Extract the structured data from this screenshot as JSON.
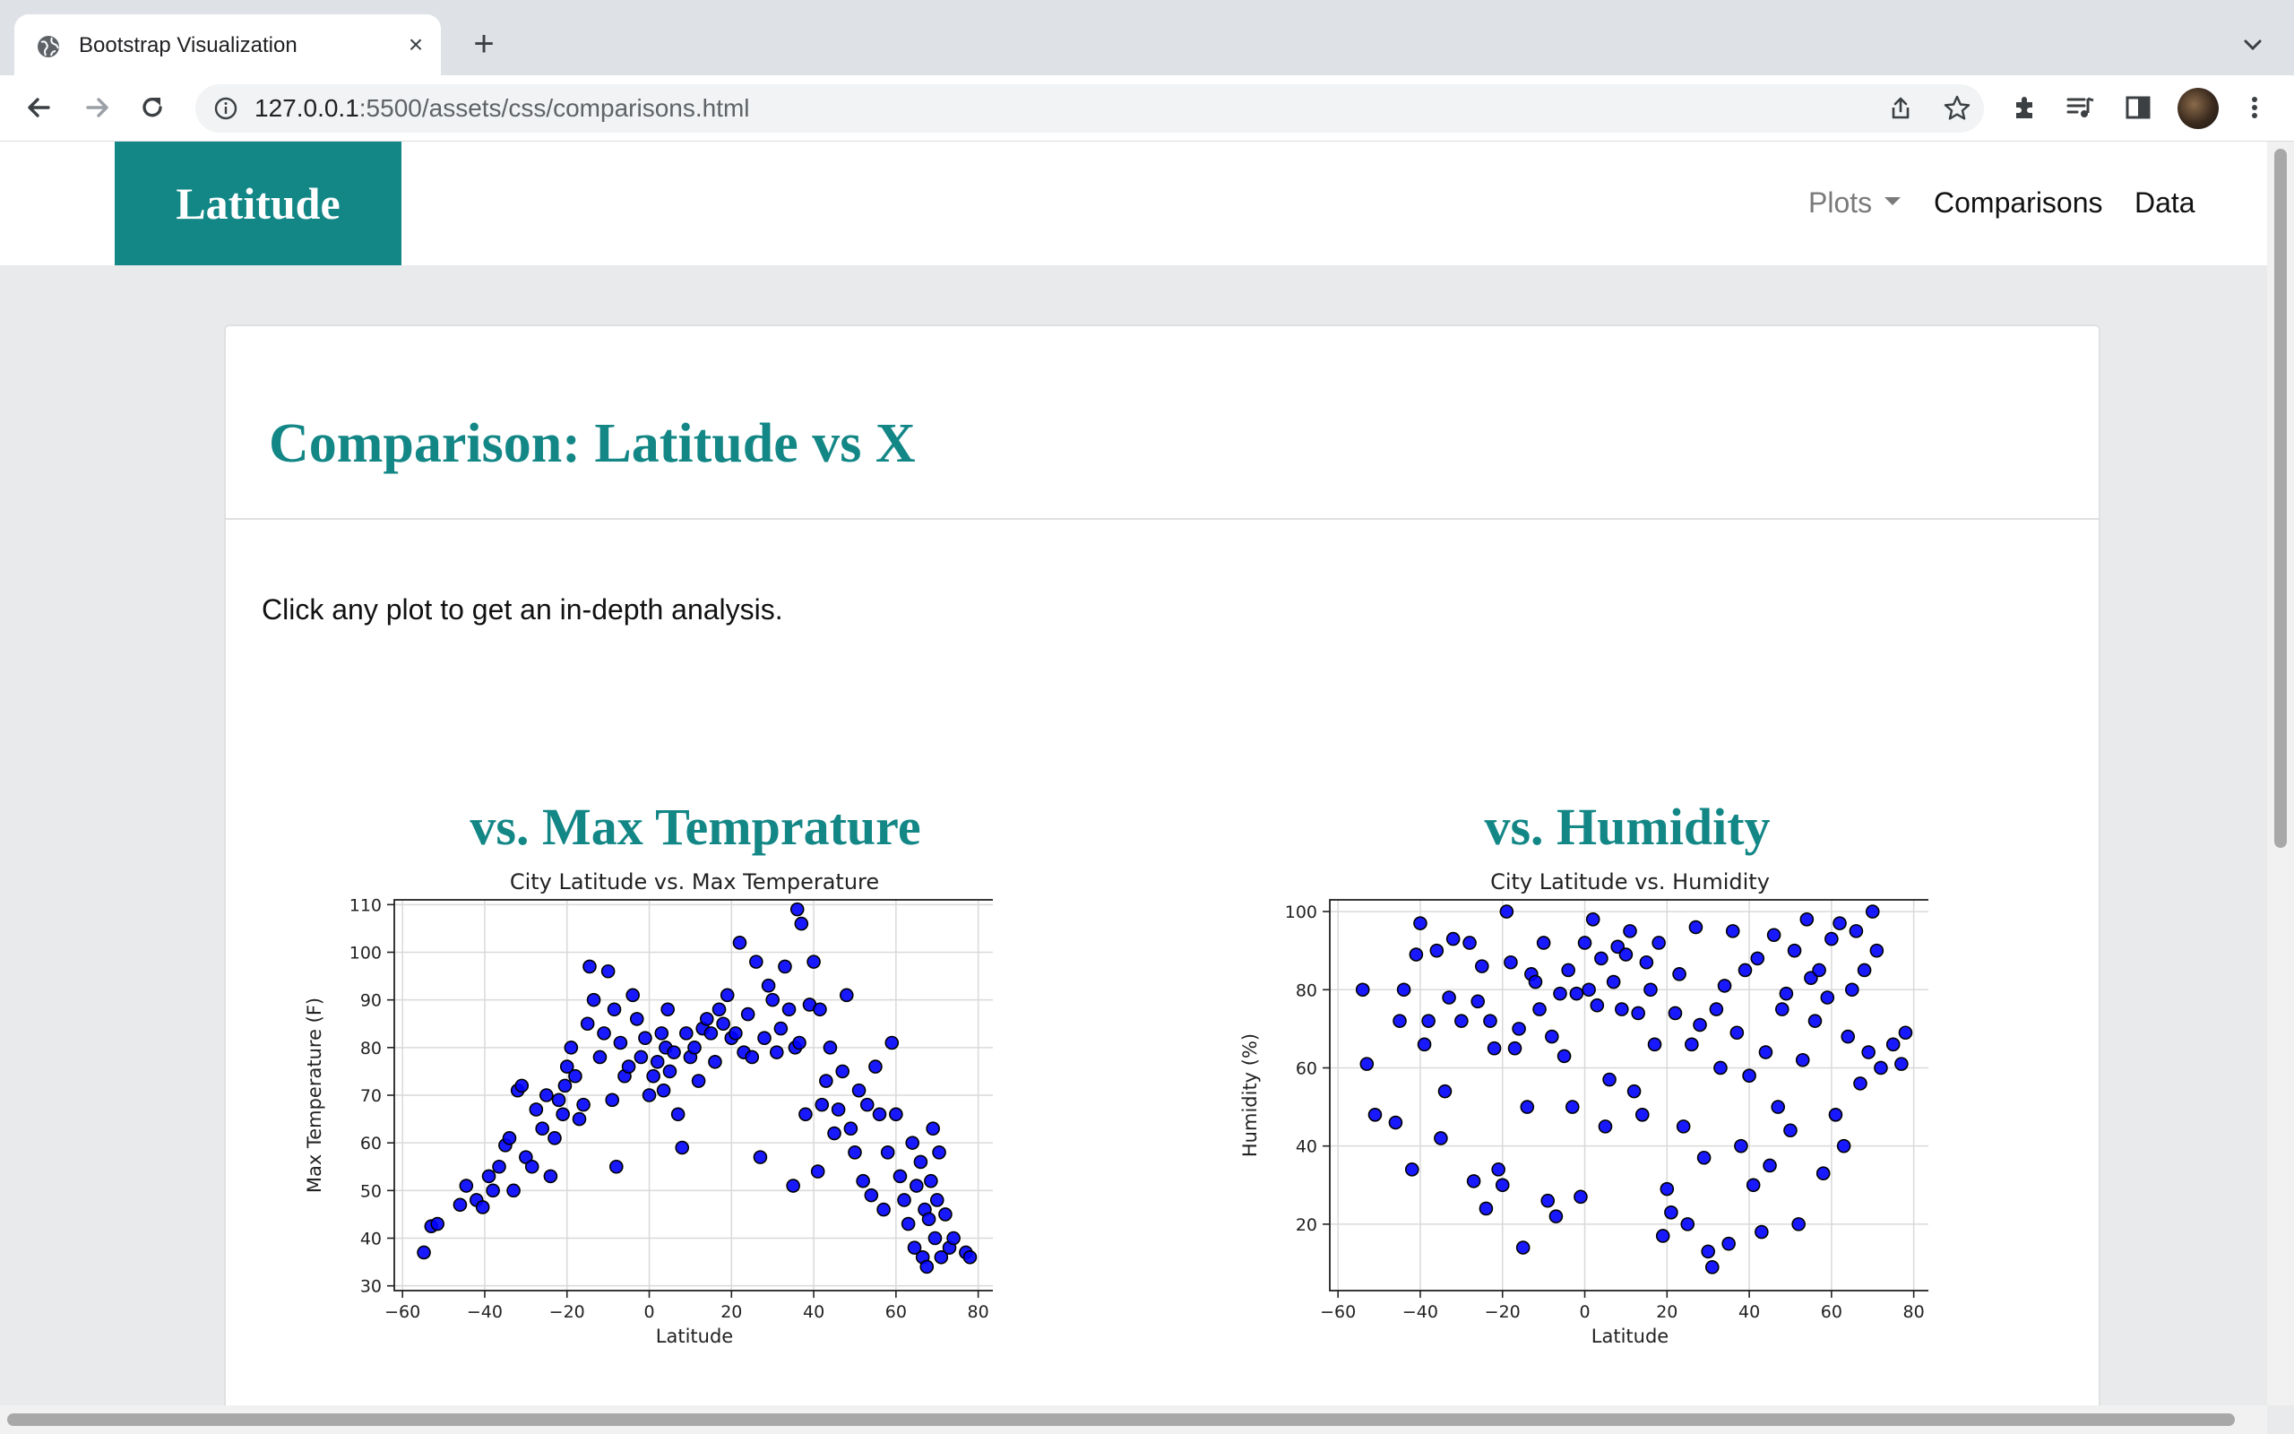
{
  "browser": {
    "tab_title": "Bootstrap Visualization",
    "url_host": "127.0.0.1",
    "url_rest": ":5500/assets/css/comparisons.html",
    "icons": [
      "globe-icon",
      "close-icon",
      "plus-icon",
      "chevron-down-icon",
      "back-icon",
      "forward-icon",
      "reload-icon",
      "info-icon",
      "share-icon",
      "star-icon",
      "extensions-icon",
      "media-icon",
      "side-panel-icon",
      "avatar",
      "menu-icon"
    ]
  },
  "nav": {
    "brand": "Latitude",
    "plots": "Plots",
    "comparisons": "Comparisons",
    "data": "Data"
  },
  "card": {
    "title": "Comparison: Latitude vs X",
    "intro": "Click any plot to get an in-depth analysis."
  },
  "plots": [
    {
      "heading": "vs. Max Temprature"
    },
    {
      "heading": "vs. Humidity"
    }
  ],
  "colors": {
    "accent": "#138686",
    "point_fill": "#0000ff",
    "point_edge": "#000000"
  },
  "chart_data": [
    {
      "type": "scatter",
      "title": "City Latitude vs. Max Temperature",
      "xlabel": "Latitude",
      "ylabel": "Max Temperature (F)",
      "xlim": [
        -62,
        84
      ],
      "ylim": [
        29,
        111
      ],
      "xticks": [
        -60,
        -40,
        -20,
        0,
        20,
        40,
        60,
        80
      ],
      "yticks": [
        30,
        40,
        50,
        60,
        70,
        80,
        90,
        100,
        110
      ],
      "grid": true,
      "points": [
        [
          -54.8,
          37
        ],
        [
          -53,
          42.5
        ],
        [
          -51.5,
          43
        ],
        [
          -46,
          47
        ],
        [
          -44.5,
          51
        ],
        [
          -42,
          48
        ],
        [
          -40.5,
          46.5
        ],
        [
          -39,
          53
        ],
        [
          -38,
          50
        ],
        [
          -36.5,
          55
        ],
        [
          -35,
          59.5
        ],
        [
          -34,
          61
        ],
        [
          -33,
          50
        ],
        [
          -32,
          71
        ],
        [
          -31,
          72
        ],
        [
          -30,
          57
        ],
        [
          -28.5,
          55
        ],
        [
          -27.5,
          67
        ],
        [
          -26,
          63
        ],
        [
          -25,
          70
        ],
        [
          -24,
          53
        ],
        [
          -23,
          61
        ],
        [
          -22,
          69
        ],
        [
          -21,
          66
        ],
        [
          -20.5,
          72
        ],
        [
          -20,
          76
        ],
        [
          -19,
          80
        ],
        [
          -18,
          74
        ],
        [
          -17,
          65
        ],
        [
          -16,
          68
        ],
        [
          -15,
          85
        ],
        [
          -14.5,
          97
        ],
        [
          -13.5,
          90
        ],
        [
          -12,
          78
        ],
        [
          -11,
          83
        ],
        [
          -10,
          96
        ],
        [
          -9,
          69
        ],
        [
          -8.5,
          88
        ],
        [
          -8,
          55
        ],
        [
          -7,
          81
        ],
        [
          -6,
          74
        ],
        [
          -5,
          76
        ],
        [
          -4,
          91
        ],
        [
          -3,
          86
        ],
        [
          -2,
          78
        ],
        [
          -1,
          82
        ],
        [
          0,
          70
        ],
        [
          1,
          74
        ],
        [
          2,
          77
        ],
        [
          3,
          83
        ],
        [
          3.5,
          71
        ],
        [
          4,
          80
        ],
        [
          4.5,
          88
        ],
        [
          5,
          75
        ],
        [
          6,
          79
        ],
        [
          7,
          66
        ],
        [
          8,
          59
        ],
        [
          9,
          83
        ],
        [
          10,
          78
        ],
        [
          11,
          80
        ],
        [
          12,
          73
        ],
        [
          13,
          84
        ],
        [
          14,
          86
        ],
        [
          15,
          83
        ],
        [
          16,
          77
        ],
        [
          17,
          88
        ],
        [
          18,
          85
        ],
        [
          19,
          91
        ],
        [
          20,
          82
        ],
        [
          21,
          83
        ],
        [
          22,
          102
        ],
        [
          23,
          79
        ],
        [
          24,
          87
        ],
        [
          25,
          78
        ],
        [
          26,
          98
        ],
        [
          27,
          57
        ],
        [
          28,
          82
        ],
        [
          29,
          93
        ],
        [
          30,
          90
        ],
        [
          31,
          79
        ],
        [
          32,
          84
        ],
        [
          33,
          97
        ],
        [
          34,
          88
        ],
        [
          35,
          51
        ],
        [
          35.5,
          80
        ],
        [
          36,
          109
        ],
        [
          36.5,
          81
        ],
        [
          37,
          106
        ],
        [
          38,
          66
        ],
        [
          39,
          89
        ],
        [
          40,
          98
        ],
        [
          41,
          54
        ],
        [
          41.5,
          88
        ],
        [
          42,
          68
        ],
        [
          43,
          73
        ],
        [
          44,
          80
        ],
        [
          45,
          62
        ],
        [
          46,
          67
        ],
        [
          47,
          75
        ],
        [
          48,
          91
        ],
        [
          49,
          63
        ],
        [
          50,
          58
        ],
        [
          51,
          71
        ],
        [
          52,
          52
        ],
        [
          53,
          68
        ],
        [
          54,
          49
        ],
        [
          55,
          76
        ],
        [
          56,
          66
        ],
        [
          57,
          46
        ],
        [
          58,
          58
        ],
        [
          59,
          81
        ],
        [
          60,
          66
        ],
        [
          61,
          53
        ],
        [
          62,
          48
        ],
        [
          63,
          43
        ],
        [
          64,
          60
        ],
        [
          64.5,
          38
        ],
        [
          65,
          51
        ],
        [
          66,
          56
        ],
        [
          66.5,
          36
        ],
        [
          67,
          46
        ],
        [
          67.5,
          34
        ],
        [
          68,
          44
        ],
        [
          68.5,
          52
        ],
        [
          69,
          63
        ],
        [
          69.5,
          40
        ],
        [
          70,
          48
        ],
        [
          70.5,
          58
        ],
        [
          71,
          36
        ],
        [
          72,
          45
        ],
        [
          73,
          38
        ],
        [
          74,
          40
        ],
        [
          77,
          37
        ],
        [
          78,
          36
        ]
      ]
    },
    {
      "type": "scatter",
      "title": "City Latitude vs. Humidity",
      "xlabel": "Latitude",
      "ylabel": "Humidity (%)",
      "xlim": [
        -62,
        84
      ],
      "ylim": [
        3,
        103
      ],
      "xticks": [
        -60,
        -40,
        -20,
        0,
        20,
        40,
        60,
        80
      ],
      "yticks": [
        20,
        40,
        60,
        80,
        100
      ],
      "grid": true,
      "points": [
        [
          -54,
          80
        ],
        [
          -53,
          61
        ],
        [
          -51,
          48
        ],
        [
          -46,
          46
        ],
        [
          -45,
          72
        ],
        [
          -44,
          80
        ],
        [
          -42,
          34
        ],
        [
          -41,
          89
        ],
        [
          -40,
          97
        ],
        [
          -39,
          66
        ],
        [
          -38,
          72
        ],
        [
          -36,
          90
        ],
        [
          -35,
          42
        ],
        [
          -34,
          54
        ],
        [
          -33,
          78
        ],
        [
          -32,
          93
        ],
        [
          -30,
          72
        ],
        [
          -28,
          92
        ],
        [
          -27,
          31
        ],
        [
          -26,
          77
        ],
        [
          -25,
          86
        ],
        [
          -24,
          24
        ],
        [
          -23,
          72
        ],
        [
          -22,
          65
        ],
        [
          -21,
          34
        ],
        [
          -20,
          30
        ],
        [
          -19,
          100
        ],
        [
          -18,
          87
        ],
        [
          -17,
          65
        ],
        [
          -16,
          70
        ],
        [
          -15,
          14
        ],
        [
          -14,
          50
        ],
        [
          -13,
          84
        ],
        [
          -12,
          82
        ],
        [
          -11,
          75
        ],
        [
          -10,
          92
        ],
        [
          -9,
          26
        ],
        [
          -8,
          68
        ],
        [
          -7,
          22
        ],
        [
          -6,
          79
        ],
        [
          -5,
          63
        ],
        [
          -4,
          85
        ],
        [
          -3,
          50
        ],
        [
          -2,
          79
        ],
        [
          -1,
          27
        ],
        [
          0,
          92
        ],
        [
          1,
          80
        ],
        [
          2,
          98
        ],
        [
          3,
          76
        ],
        [
          4,
          88
        ],
        [
          5,
          45
        ],
        [
          6,
          57
        ],
        [
          7,
          82
        ],
        [
          8,
          91
        ],
        [
          9,
          75
        ],
        [
          10,
          89
        ],
        [
          11,
          95
        ],
        [
          12,
          54
        ],
        [
          13,
          74
        ],
        [
          14,
          48
        ],
        [
          15,
          87
        ],
        [
          16,
          80
        ],
        [
          17,
          66
        ],
        [
          18,
          92
        ],
        [
          19,
          17
        ],
        [
          20,
          29
        ],
        [
          21,
          23
        ],
        [
          22,
          74
        ],
        [
          23,
          84
        ],
        [
          24,
          45
        ],
        [
          25,
          20
        ],
        [
          26,
          66
        ],
        [
          27,
          96
        ],
        [
          28,
          71
        ],
        [
          29,
          37
        ],
        [
          30,
          13
        ],
        [
          31,
          9
        ],
        [
          32,
          75
        ],
        [
          33,
          60
        ],
        [
          34,
          81
        ],
        [
          35,
          15
        ],
        [
          36,
          95
        ],
        [
          37,
          69
        ],
        [
          38,
          40
        ],
        [
          39,
          85
        ],
        [
          40,
          58
        ],
        [
          41,
          30
        ],
        [
          42,
          88
        ],
        [
          43,
          18
        ],
        [
          44,
          64
        ],
        [
          45,
          35
        ],
        [
          46,
          94
        ],
        [
          47,
          50
        ],
        [
          48,
          75
        ],
        [
          49,
          79
        ],
        [
          50,
          44
        ],
        [
          51,
          90
        ],
        [
          52,
          20
        ],
        [
          53,
          62
        ],
        [
          54,
          98
        ],
        [
          55,
          83
        ],
        [
          56,
          72
        ],
        [
          57,
          85
        ],
        [
          58,
          33
        ],
        [
          59,
          78
        ],
        [
          60,
          93
        ],
        [
          61,
          48
        ],
        [
          62,
          97
        ],
        [
          63,
          40
        ],
        [
          64,
          68
        ],
        [
          65,
          80
        ],
        [
          66,
          95
        ],
        [
          67,
          56
        ],
        [
          68,
          85
        ],
        [
          69,
          64
        ],
        [
          70,
          100
        ],
        [
          71,
          90
        ],
        [
          72,
          60
        ],
        [
          75,
          66
        ],
        [
          77,
          61
        ],
        [
          78,
          69
        ]
      ]
    }
  ]
}
